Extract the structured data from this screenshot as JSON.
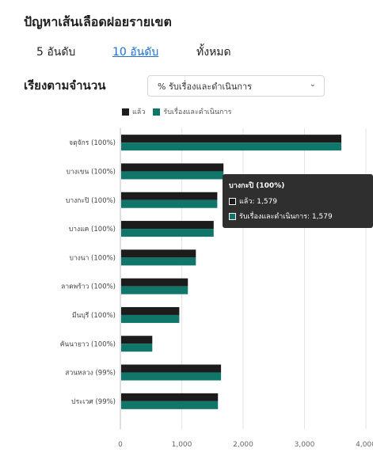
{
  "header": {
    "title": "ปัญหาเส้นเลือดฝอยรายเขต"
  },
  "tabs": [
    {
      "label": "5 อันดับ",
      "active": false
    },
    {
      "label": "10 อันดับ",
      "active": true
    },
    {
      "label": "ทั้งหมด",
      "active": false
    }
  ],
  "sort": {
    "label": "เรียงตามจำนวน",
    "selected": "% รับเรื่องและดำเนินการ",
    "chevron_icon": "chevron-down-icon"
  },
  "colors": {
    "series_done": "#1c1c1c",
    "series_received": "#11766a",
    "link": "#1b6fd6"
  },
  "chart_data": {
    "type": "bar",
    "orientation": "horizontal",
    "categories": [
      "จตุจักร (100%)",
      "บางเขน (100%)",
      "บางกะปิ (100%)",
      "บางแค (100%)",
      "บางนา (100%)",
      "ลาดพร้าว (100%)",
      "มีนบุรี (100%)",
      "คันนายาว (100%)",
      "สวนหลวง (99%)",
      "ประเวศ (99%)"
    ],
    "series": [
      {
        "name": "แล้ว",
        "values": [
          3600,
          1680,
          1579,
          1520,
          1230,
          1100,
          960,
          520,
          1640,
          1590
        ]
      },
      {
        "name": "รับเรื่องและดำเนินการ",
        "values": [
          3600,
          1680,
          1579,
          1520,
          1230,
          1100,
          960,
          520,
          1640,
          1590
        ]
      }
    ],
    "xlim": [
      0,
      4000
    ],
    "ticks": [
      "0",
      "1,000",
      "2,000",
      "3,000",
      "4,000"
    ],
    "grid": true,
    "legend_position": "top"
  },
  "tooltip": {
    "title": "บางกะปิ (100%)",
    "rows": [
      "แล้ว: 1,579",
      "รับเรื่องและดำเนินการ: 1,579"
    ]
  }
}
